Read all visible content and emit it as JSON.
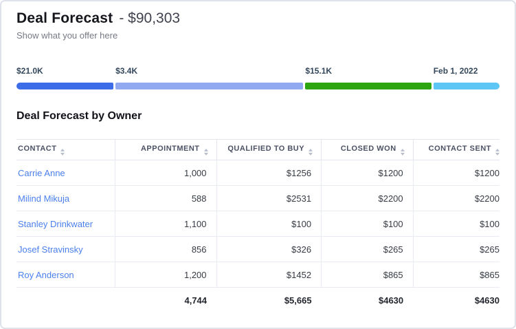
{
  "header": {
    "title": "Deal Forecast",
    "amount": "- $90,303",
    "subtitle": "Show what you offer here"
  },
  "funnel": {
    "segments": [
      {
        "label": "$21.0K",
        "color": "#3d6ce9",
        "offset_pct": 0,
        "width_pct": 20.1
      },
      {
        "label": "$3.4K",
        "color": "#91a9f1",
        "offset_pct": 20.5,
        "width_pct": 38.8
      },
      {
        "label": "$15.1K",
        "color": "#2ca511",
        "offset_pct": 59.8,
        "width_pct": 26.1
      },
      {
        "label": "Feb 1, 2022",
        "color": "#5ec6f4",
        "offset_pct": 86.3,
        "width_pct": 13.7
      }
    ]
  },
  "table": {
    "title": "Deal Forecast by Owner",
    "columns": [
      {
        "label": "CONTACT"
      },
      {
        "label": "APPOINTMENT"
      },
      {
        "label": "QUALIFIED TO BUY"
      },
      {
        "label": "CLOSED WON"
      },
      {
        "label": "CONTACT SENT"
      }
    ],
    "rows": [
      {
        "contact": "Carrie Anne",
        "appointment": "1,000",
        "qualified_to_buy": "$1256",
        "closed_won": "$1200",
        "contact_sent": "$1200"
      },
      {
        "contact": "Milind Mikuja",
        "appointment": "588",
        "qualified_to_buy": "$2531",
        "closed_won": "$2200",
        "contact_sent": "$2200"
      },
      {
        "contact": "Stanley Drinkwater",
        "appointment": "1,100",
        "qualified_to_buy": "$100",
        "closed_won": "$100",
        "contact_sent": "$100"
      },
      {
        "contact": "Josef Stravinsky",
        "appointment": "856",
        "qualified_to_buy": "$326",
        "closed_won": "$265",
        "contact_sent": "$265"
      },
      {
        "contact": "Roy Anderson",
        "appointment": "1,200",
        "qualified_to_buy": "$1452",
        "closed_won": "$865",
        "contact_sent": "$865"
      }
    ],
    "totals": {
      "appointment": "4,744",
      "qualified_to_buy": "$5,665",
      "closed_won": "$4630",
      "contact_sent": "$4630"
    }
  },
  "colors": {
    "bar_blue": "#3d6ce9",
    "bar_periwinkle": "#91a9f1",
    "bar_green": "#2ca511",
    "bar_sky": "#5ec6f4",
    "link_blue": "#4b80ee",
    "border": "#e3e6ee"
  }
}
